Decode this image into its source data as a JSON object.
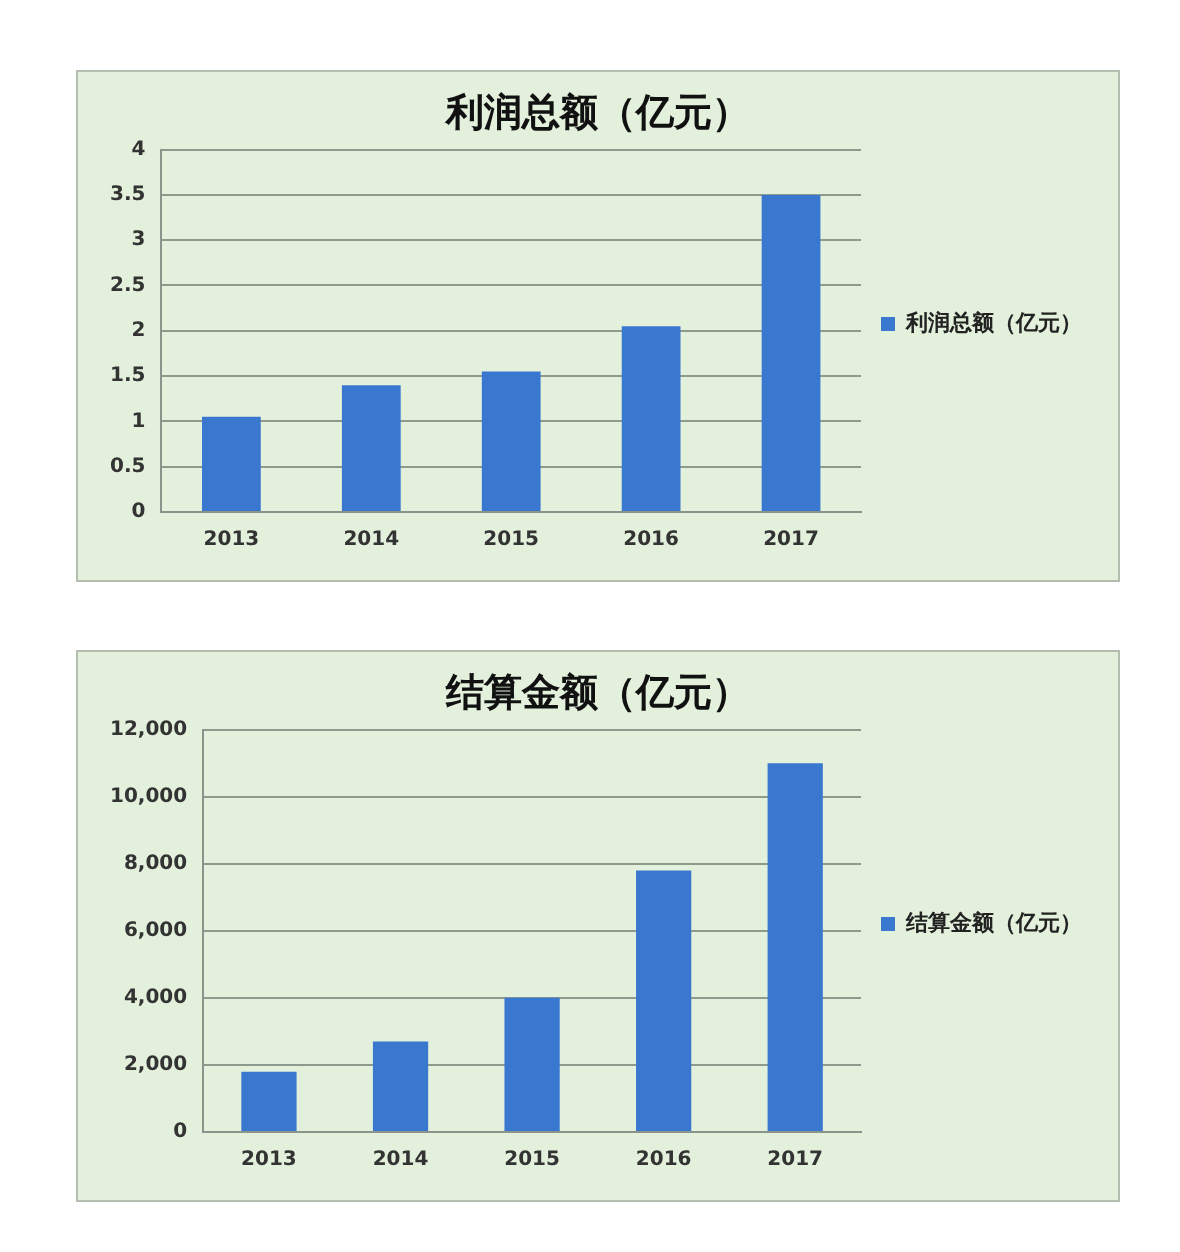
{
  "chart_data": [
    {
      "type": "bar",
      "title": "利润总额（亿元）",
      "categories": [
        "2013",
        "2014",
        "2015",
        "2016",
        "2017"
      ],
      "series": [
        {
          "name": "利润总额（亿元）",
          "color": "#3a78d0",
          "values": [
            1.05,
            1.4,
            1.55,
            2.05,
            3.5
          ]
        }
      ],
      "ylim": [
        0,
        4
      ],
      "yticks": [
        0,
        0.5,
        1,
        1.5,
        2,
        2.5,
        3,
        3.5,
        4
      ],
      "grid": "y",
      "legend": "right"
    },
    {
      "type": "bar",
      "title": "结算金额（亿元）",
      "categories": [
        "2013",
        "2014",
        "2015",
        "2016",
        "2017"
      ],
      "series": [
        {
          "name": "结算金额（亿元）",
          "color": "#3a78d0",
          "values": [
            1800,
            2700,
            4000,
            7800,
            11000
          ]
        }
      ],
      "ylim": [
        0,
        12000
      ],
      "yticks": [
        0,
        {
          "value": 2000,
          "label": "2,000"
        },
        {
          "value": 4000,
          "label": "4,000"
        },
        {
          "value": 6000,
          "label": "6,000"
        },
        {
          "value": 8000,
          "label": "8,000"
        },
        {
          "value": 10000,
          "label": "10,000"
        },
        {
          "value": 12000,
          "label": "12,000"
        }
      ],
      "grid": "y",
      "legend": "right"
    }
  ]
}
